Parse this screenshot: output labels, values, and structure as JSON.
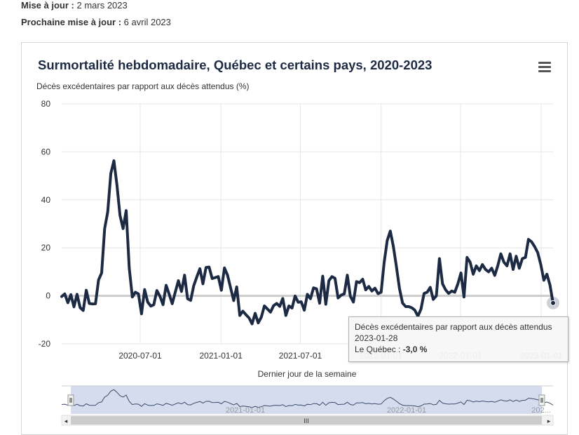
{
  "meta": {
    "updated_label": "Mise à jour :",
    "updated_value": "2 mars 2023",
    "next_label": "Prochaine mise à jour :",
    "next_value": "6 avril 2023"
  },
  "menu_icon": "hamburger-menu-icon",
  "colors": {
    "line": "#1d2a44",
    "navigator_fill": "#c9d3ea",
    "zero_line": "#cccccc"
  },
  "tooltip": {
    "title": "Décès excédentaires par rapport aux décès attendus",
    "date": "2023-01-28",
    "series_label": "Le Québec :",
    "value": "-3,0 %"
  },
  "navigator": {
    "labels": [
      "2021-01-01",
      "2022-01-01",
      "202..."
    ],
    "scrollbar_grip": "III"
  },
  "chart_data": {
    "type": "line",
    "title": "Surmortalité hebdomadaire, Québec et certains pays, 2020-2023",
    "ylabel": "Décès excédentaires par rapport aux décès attendus (%)",
    "xlabel": "Dernier jour de la semaine",
    "ylim": [
      -20,
      80
    ],
    "yticks": [
      -20,
      0,
      20,
      40,
      60,
      80
    ],
    "xticks": [
      "2020-07-01",
      "2021-01-01",
      "2021-07-01",
      "2022-01-01",
      "2022-07-01",
      "2023-01-01"
    ],
    "x_range": [
      "2020-01-04",
      "2023-01-28"
    ],
    "legend": "none",
    "grid": true,
    "series": [
      {
        "name": "Le Québec",
        "start_date": "2020-01-04",
        "interval_days": 7,
        "values": [
          -0.3,
          0.8,
          -2.9,
          0.5,
          -4.6,
          0.6,
          -4.9,
          -6.1,
          2.3,
          -3.2,
          -3.4,
          -3.3,
          6.6,
          9.5,
          28.0,
          35.0,
          51.0,
          56.3,
          46.0,
          33.5,
          28.0,
          35.5,
          11.5,
          -0.5,
          1.5,
          0.8,
          -7.5,
          2.6,
          -2.6,
          -4.3,
          -3.7,
          2.2,
          -0.2,
          -3.7,
          4.4,
          0.7,
          -3.3,
          1.6,
          6.3,
          1.8,
          8.6,
          -1.2,
          -1.9,
          4.2,
          7.9,
          11.3,
          5.0,
          11.8,
          12.0,
          7.2,
          7.6,
          8.0,
          2.3,
          11.6,
          8.6,
          3.3,
          -2.0,
          3.7,
          -8.2,
          -6.4,
          -7.9,
          -9.2,
          -11.7,
          -7.3,
          -11.3,
          -8.9,
          -4.2,
          -5.5,
          -6.8,
          -4.1,
          -3.2,
          -4.4,
          -1.1,
          -8.2,
          -4.2,
          -5.1,
          -0.1,
          -2.7,
          -2.5,
          -6.0,
          0.6,
          -1.2,
          3.3,
          2.9,
          -3.1,
          8.2,
          -3.5,
          6.3,
          8.0,
          7.3,
          -0.9,
          0.3,
          0.8,
          8.6,
          -0.2,
          -2.6,
          5.9,
          5.5,
          6.9,
          2.5,
          3.9,
          2.0,
          3.2,
          0.9,
          1.5,
          13.8,
          23.0,
          27.0,
          20.5,
          12.0,
          3.0,
          -3.0,
          -4.5,
          -4.5,
          -5.0,
          -6.0,
          -8.5,
          -5.5,
          1.0,
          1.5,
          3.5,
          -1.5,
          0.0,
          15.5,
          5.0,
          2.5,
          1.0,
          2.0,
          1.5,
          5.0,
          9.5,
          -0.5,
          16.0,
          14.0,
          9.0,
          12.5,
          10.5,
          13.0,
          11.0,
          10.0,
          11.5,
          8.5,
          12.5,
          17.5,
          14.0,
          12.5,
          17.5,
          11.0,
          16.5,
          11.5,
          15.5,
          16.0,
          23.5,
          22.5,
          20.5,
          18.0,
          13.0,
          6.5,
          9.0,
          4.5,
          -3.0
        ]
      }
    ]
  }
}
